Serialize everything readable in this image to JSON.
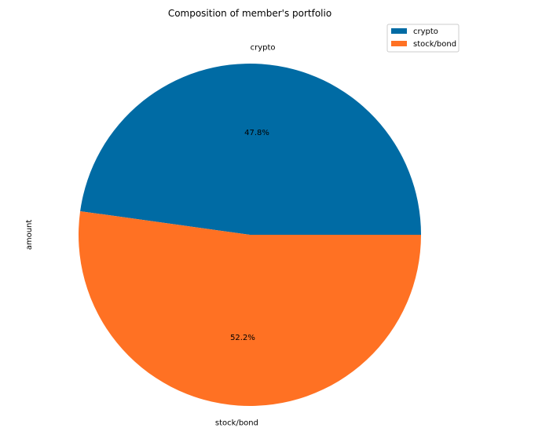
{
  "chart_data": {
    "type": "pie",
    "title": "Composition of member's portfolio",
    "ylabel": "amount",
    "categories": [
      "crypto",
      "stock/bond"
    ],
    "values": [
      47.8,
      52.2
    ],
    "percent_labels": [
      "47.8%",
      "52.2%"
    ],
    "colors": [
      "#006ba4",
      "#ff7123"
    ],
    "start_angle": "0 (counter-clockwise)",
    "legend": {
      "placement": "top-right",
      "entries": [
        "crypto",
        "stock/bond"
      ]
    }
  }
}
